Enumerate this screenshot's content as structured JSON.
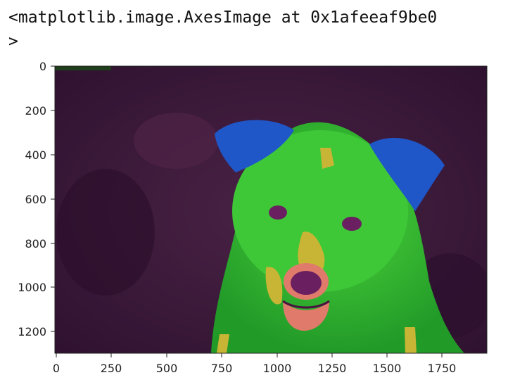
{
  "output": {
    "repr_line1": "<matplotlib.image.AxesImage at 0x1afeeaf9be0",
    "repr_line2": ">"
  },
  "chart_data": {
    "type": "image",
    "x_ticks": [
      "0",
      "250",
      "500",
      "750",
      "1000",
      "1250",
      "1500",
      "1750"
    ],
    "y_ticks": [
      "0",
      "200",
      "400",
      "600",
      "800",
      "1000",
      "1200"
    ],
    "xlim": [
      0,
      1950
    ],
    "ylim": [
      1300,
      0
    ],
    "image_description": "false-color photo of a puppy",
    "colors": {
      "background": "#3b1838",
      "dog_body": "#2fb42a",
      "ears": "#1f56c8",
      "patches": "#c9b535",
      "nose": "#6a2060",
      "tongue": "#e07a6a"
    }
  }
}
